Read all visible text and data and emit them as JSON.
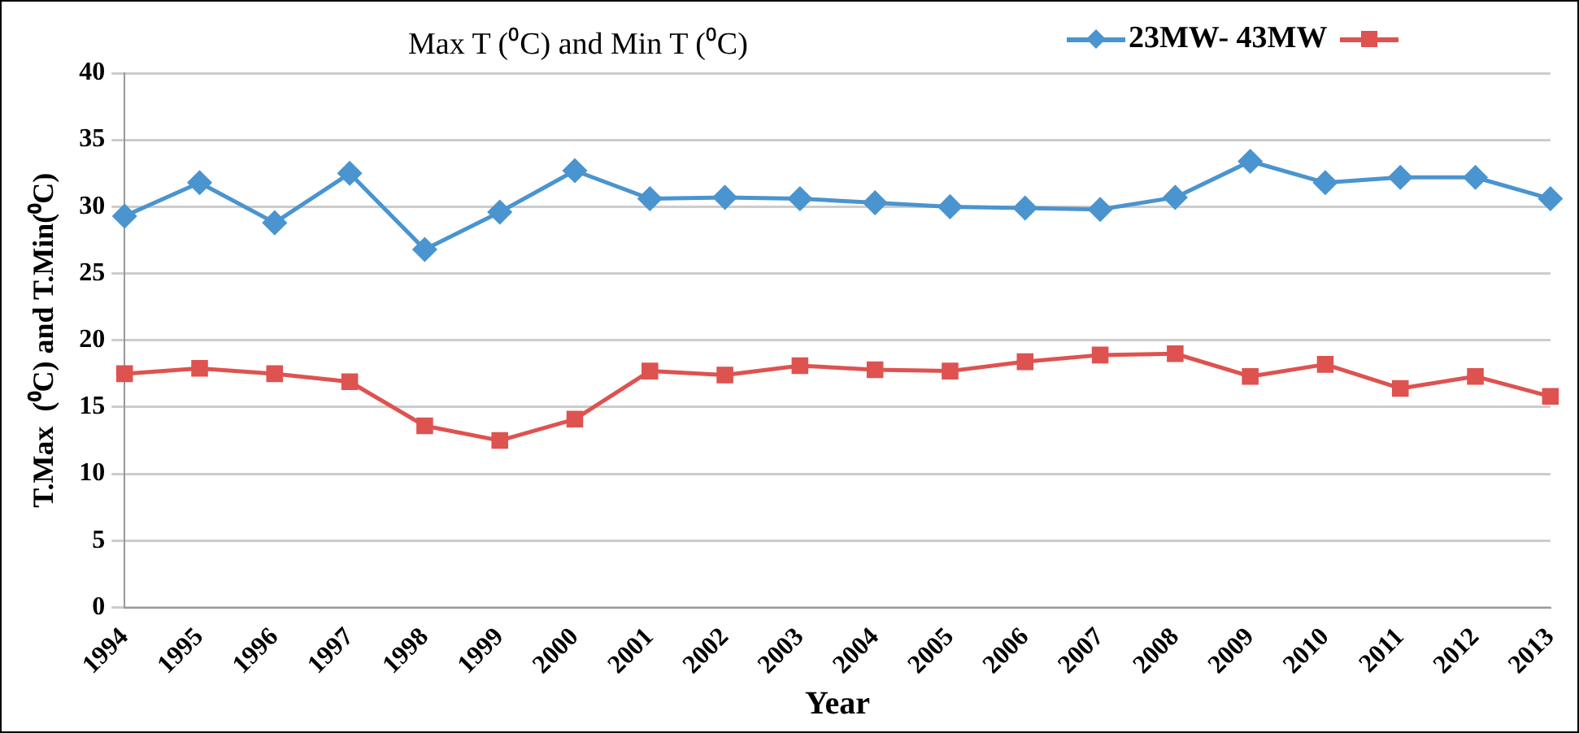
{
  "chart_data": {
    "type": "line",
    "title": "Max T (⁰C) and Min T (⁰C)",
    "xlabel": "Year",
    "ylabel": "T.Max  (⁰C) and T.Min(⁰C)",
    "categories": [
      "1994",
      "1995",
      "1996",
      "1997",
      "1998",
      "1999",
      "2000",
      "2001",
      "2002",
      "2003",
      "2004",
      "2005",
      "2006",
      "2007",
      "2008",
      "2009",
      "2010",
      "2011",
      "2012",
      "2013"
    ],
    "series": [
      {
        "name": "23MW- 43MW",
        "color": "#4a94cf",
        "marker": "diamond",
        "values": [
          29.3,
          31.8,
          28.8,
          32.5,
          26.8,
          29.6,
          32.7,
          30.6,
          30.7,
          30.6,
          30.3,
          30.0,
          29.9,
          29.8,
          30.7,
          33.4,
          31.8,
          32.2,
          32.2,
          30.6
        ]
      },
      {
        "color": "#de5250",
        "marker": "square",
        "values": [
          17.5,
          17.9,
          17.5,
          16.9,
          13.6,
          12.5,
          14.1,
          17.7,
          17.4,
          18.1,
          17.8,
          17.7,
          18.4,
          18.9,
          19.0,
          17.3,
          18.2,
          16.4,
          17.3,
          15.8
        ]
      }
    ],
    "ylim": [
      0,
      40
    ],
    "yticks": [
      0,
      5,
      10,
      15,
      20,
      25,
      30,
      35,
      40
    ],
    "grid": "y",
    "legend": "top right",
    "line_style": "solid"
  }
}
